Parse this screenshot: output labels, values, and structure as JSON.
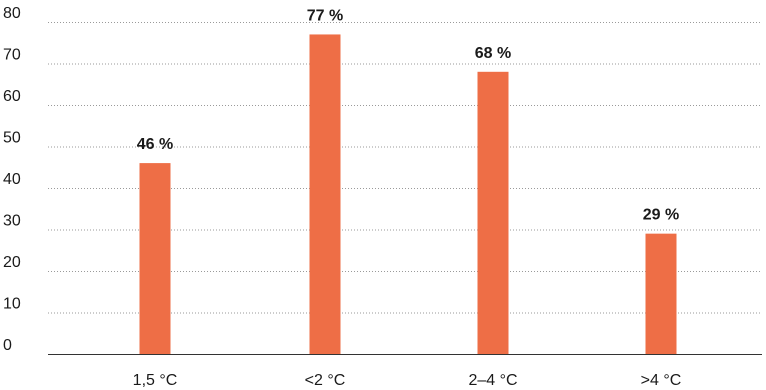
{
  "chart_data": {
    "type": "bar",
    "categories": [
      "1,5 °C",
      "<2 °C",
      "2–4 °C",
      ">4 °C"
    ],
    "values": [
      46,
      77,
      68,
      29
    ],
    "data_labels": [
      "46 %",
      "77 %",
      "68 %",
      "29 %"
    ],
    "title": "",
    "xlabel": "",
    "ylabel": "",
    "ylim": [
      0,
      80
    ],
    "yticks": [
      0,
      10,
      20,
      30,
      40,
      50,
      60,
      70,
      80
    ],
    "grid": true,
    "legend": "none",
    "bar_color": "#EE6E46",
    "grid_color": "#9a9a9a",
    "text_color": "#1a1a1a"
  }
}
